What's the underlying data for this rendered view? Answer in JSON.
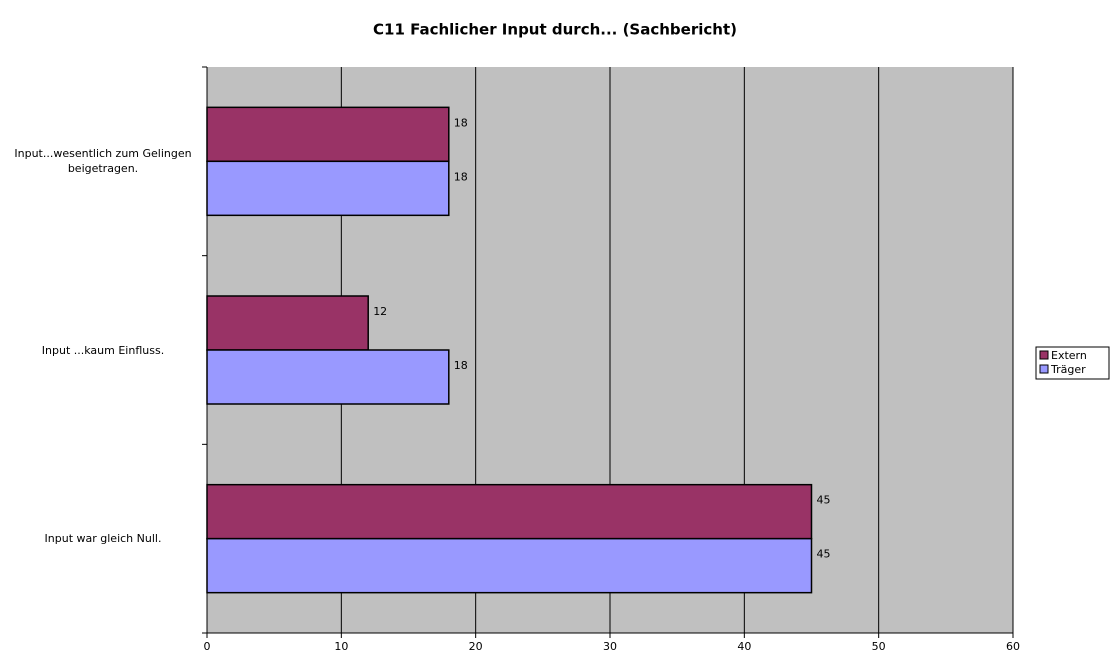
{
  "chart_data": {
    "type": "hbar",
    "title": "C11 Fachlicher Input durch... (Sachbericht)",
    "categories": [
      "Input...wesentlich zum Gelingen beigetragen.",
      "Input ...kaum Einfluss.",
      "Input war gleich Null."
    ],
    "series": [
      {
        "name": "Extern",
        "color": "#993366",
        "values": [
          18,
          12,
          45
        ]
      },
      {
        "name": "Träger",
        "color": "#9999ff",
        "values": [
          18,
          18,
          45
        ]
      }
    ],
    "xlim": [
      0,
      60
    ],
    "xticks": [
      0,
      10,
      20,
      30,
      40,
      50,
      60
    ],
    "grid": true,
    "legend": "right"
  }
}
